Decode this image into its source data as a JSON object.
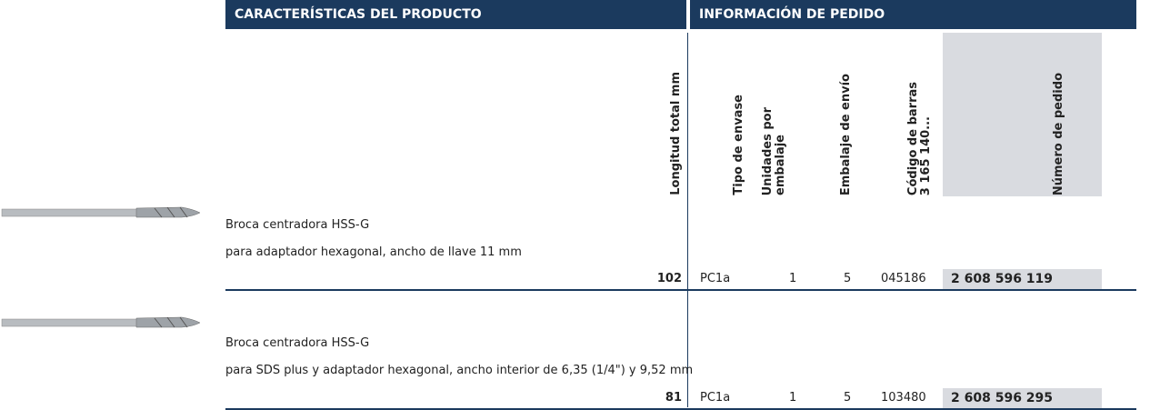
{
  "header": {
    "left": "CARACTERÍSTICAS DEL PRODUCTO",
    "right": "INFORMACIÓN DE PEDIDO"
  },
  "columns": [
    {
      "lines": [
        "Longitud total mm"
      ]
    },
    {
      "lines": [
        "Tipo de envase"
      ]
    },
    {
      "lines": [
        "Unidades por",
        "embalaje"
      ]
    },
    {
      "lines": [
        "Embalaje de envío"
      ]
    },
    {
      "lines": [
        "Código de barras",
        "3 165 140..."
      ]
    },
    {
      "lines": [
        "Número de pedido"
      ]
    }
  ],
  "products": [
    {
      "name": "Broca centradora HSS-G",
      "description": "para adaptador hexagonal, ancho de llave 11 mm",
      "length": "102",
      "package_type": "PC1a",
      "units": "1",
      "shipping": "5",
      "barcode": "045186",
      "order_number": "2 608 596 119"
    },
    {
      "name": "Broca centradora HSS-G",
      "description": "para SDS plus y adaptador hexagonal, ancho interior de 6,35 (1/4\") y 9,52 mm",
      "length": "81",
      "package_type": "PC1a",
      "units": "1",
      "shipping": "5",
      "barcode": "103480",
      "order_number": "2 608 596 295"
    }
  ]
}
